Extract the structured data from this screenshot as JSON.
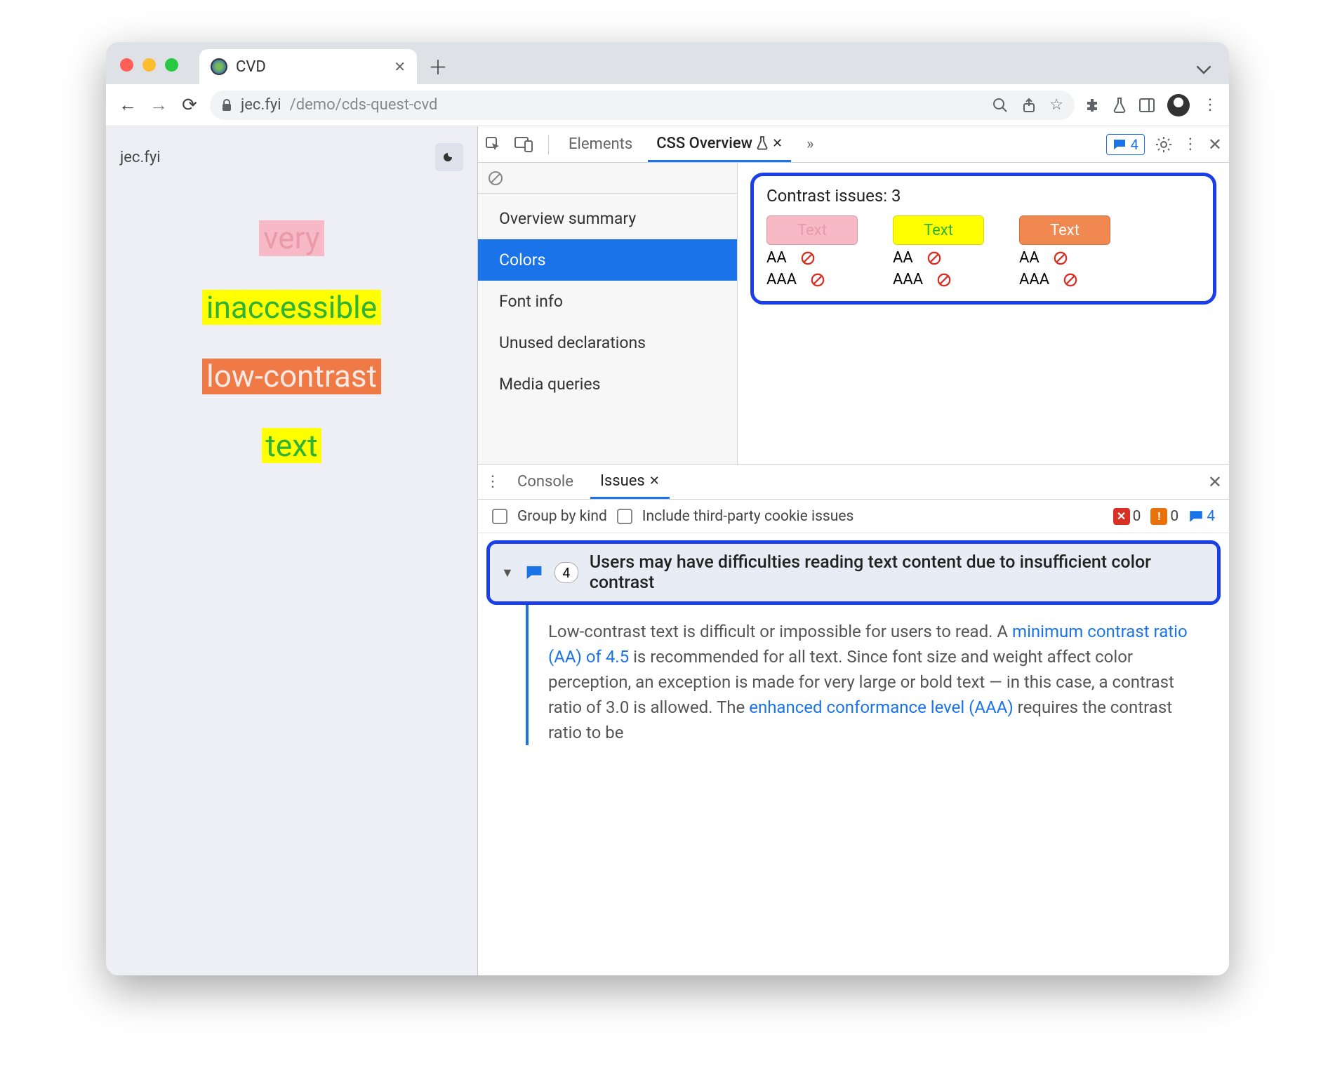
{
  "browser": {
    "tab_title": "CVD",
    "url_host": "jec.fyi",
    "url_path": "/demo/cds-quest-cvd"
  },
  "page": {
    "site_name": "jec.fyi",
    "words": [
      {
        "text": "very",
        "fg": "#e99aa8",
        "bg": "#f8b9c6"
      },
      {
        "text": "inaccessible",
        "fg": "#2db33a",
        "bg": "#ffff00"
      },
      {
        "text": "low-contrast",
        "fg": "#f7e9e4",
        "bg": "#f07a45"
      },
      {
        "text": "text",
        "fg": "#2db33a",
        "bg": "#ffff00"
      }
    ]
  },
  "devtools": {
    "tabs": {
      "elements": "Elements",
      "css_overview": "CSS Overview",
      "more": "»"
    },
    "issues_count": "4",
    "css_overview_panel": {
      "items": {
        "summary": "Overview summary",
        "colors": "Colors",
        "font_info": "Font info",
        "unused": "Unused declarations",
        "media": "Media queries"
      },
      "contrast": {
        "title": "Contrast issues: 3",
        "aa_label": "AA",
        "aaa_label": "AAA",
        "swatches": [
          {
            "label": "Text",
            "fg": "#e99aa8",
            "bg": "#f8b9c6"
          },
          {
            "label": "Text",
            "fg": "#2db33a",
            "bg": "#ffff00"
          },
          {
            "label": "Text",
            "fg": "#ffffff",
            "bg": "#f1884f"
          }
        ]
      }
    },
    "drawer": {
      "tabs": {
        "console": "Console",
        "issues": "Issues"
      },
      "group_by_kind": "Group by kind",
      "include_third_party": "Include third-party cookie issues",
      "counts": {
        "error": "0",
        "warning": "0",
        "info": "4"
      },
      "issue": {
        "count": "4",
        "title": "Users may have difficulties reading text content due to insufficient color contrast",
        "body_1": "Low-contrast text is difficult or impossible for users to read. A ",
        "link_1": "minimum contrast ratio (AA) of 4.5",
        "body_2": " is recommended for all text. Since font size and weight affect color perception, an exception is made for very large or bold text — in this case, a contrast ratio of 3.0 is allowed. The ",
        "link_2": "enhanced conformance level (AAA)",
        "body_3": " requires the contrast ratio to be"
      }
    }
  },
  "styling": {
    "accent_blue": "#1a73e8",
    "highlight_border": "#1a3ee8",
    "page_bg": "#edeff5",
    "sidebar_selected_bg": "#1a73e8"
  }
}
